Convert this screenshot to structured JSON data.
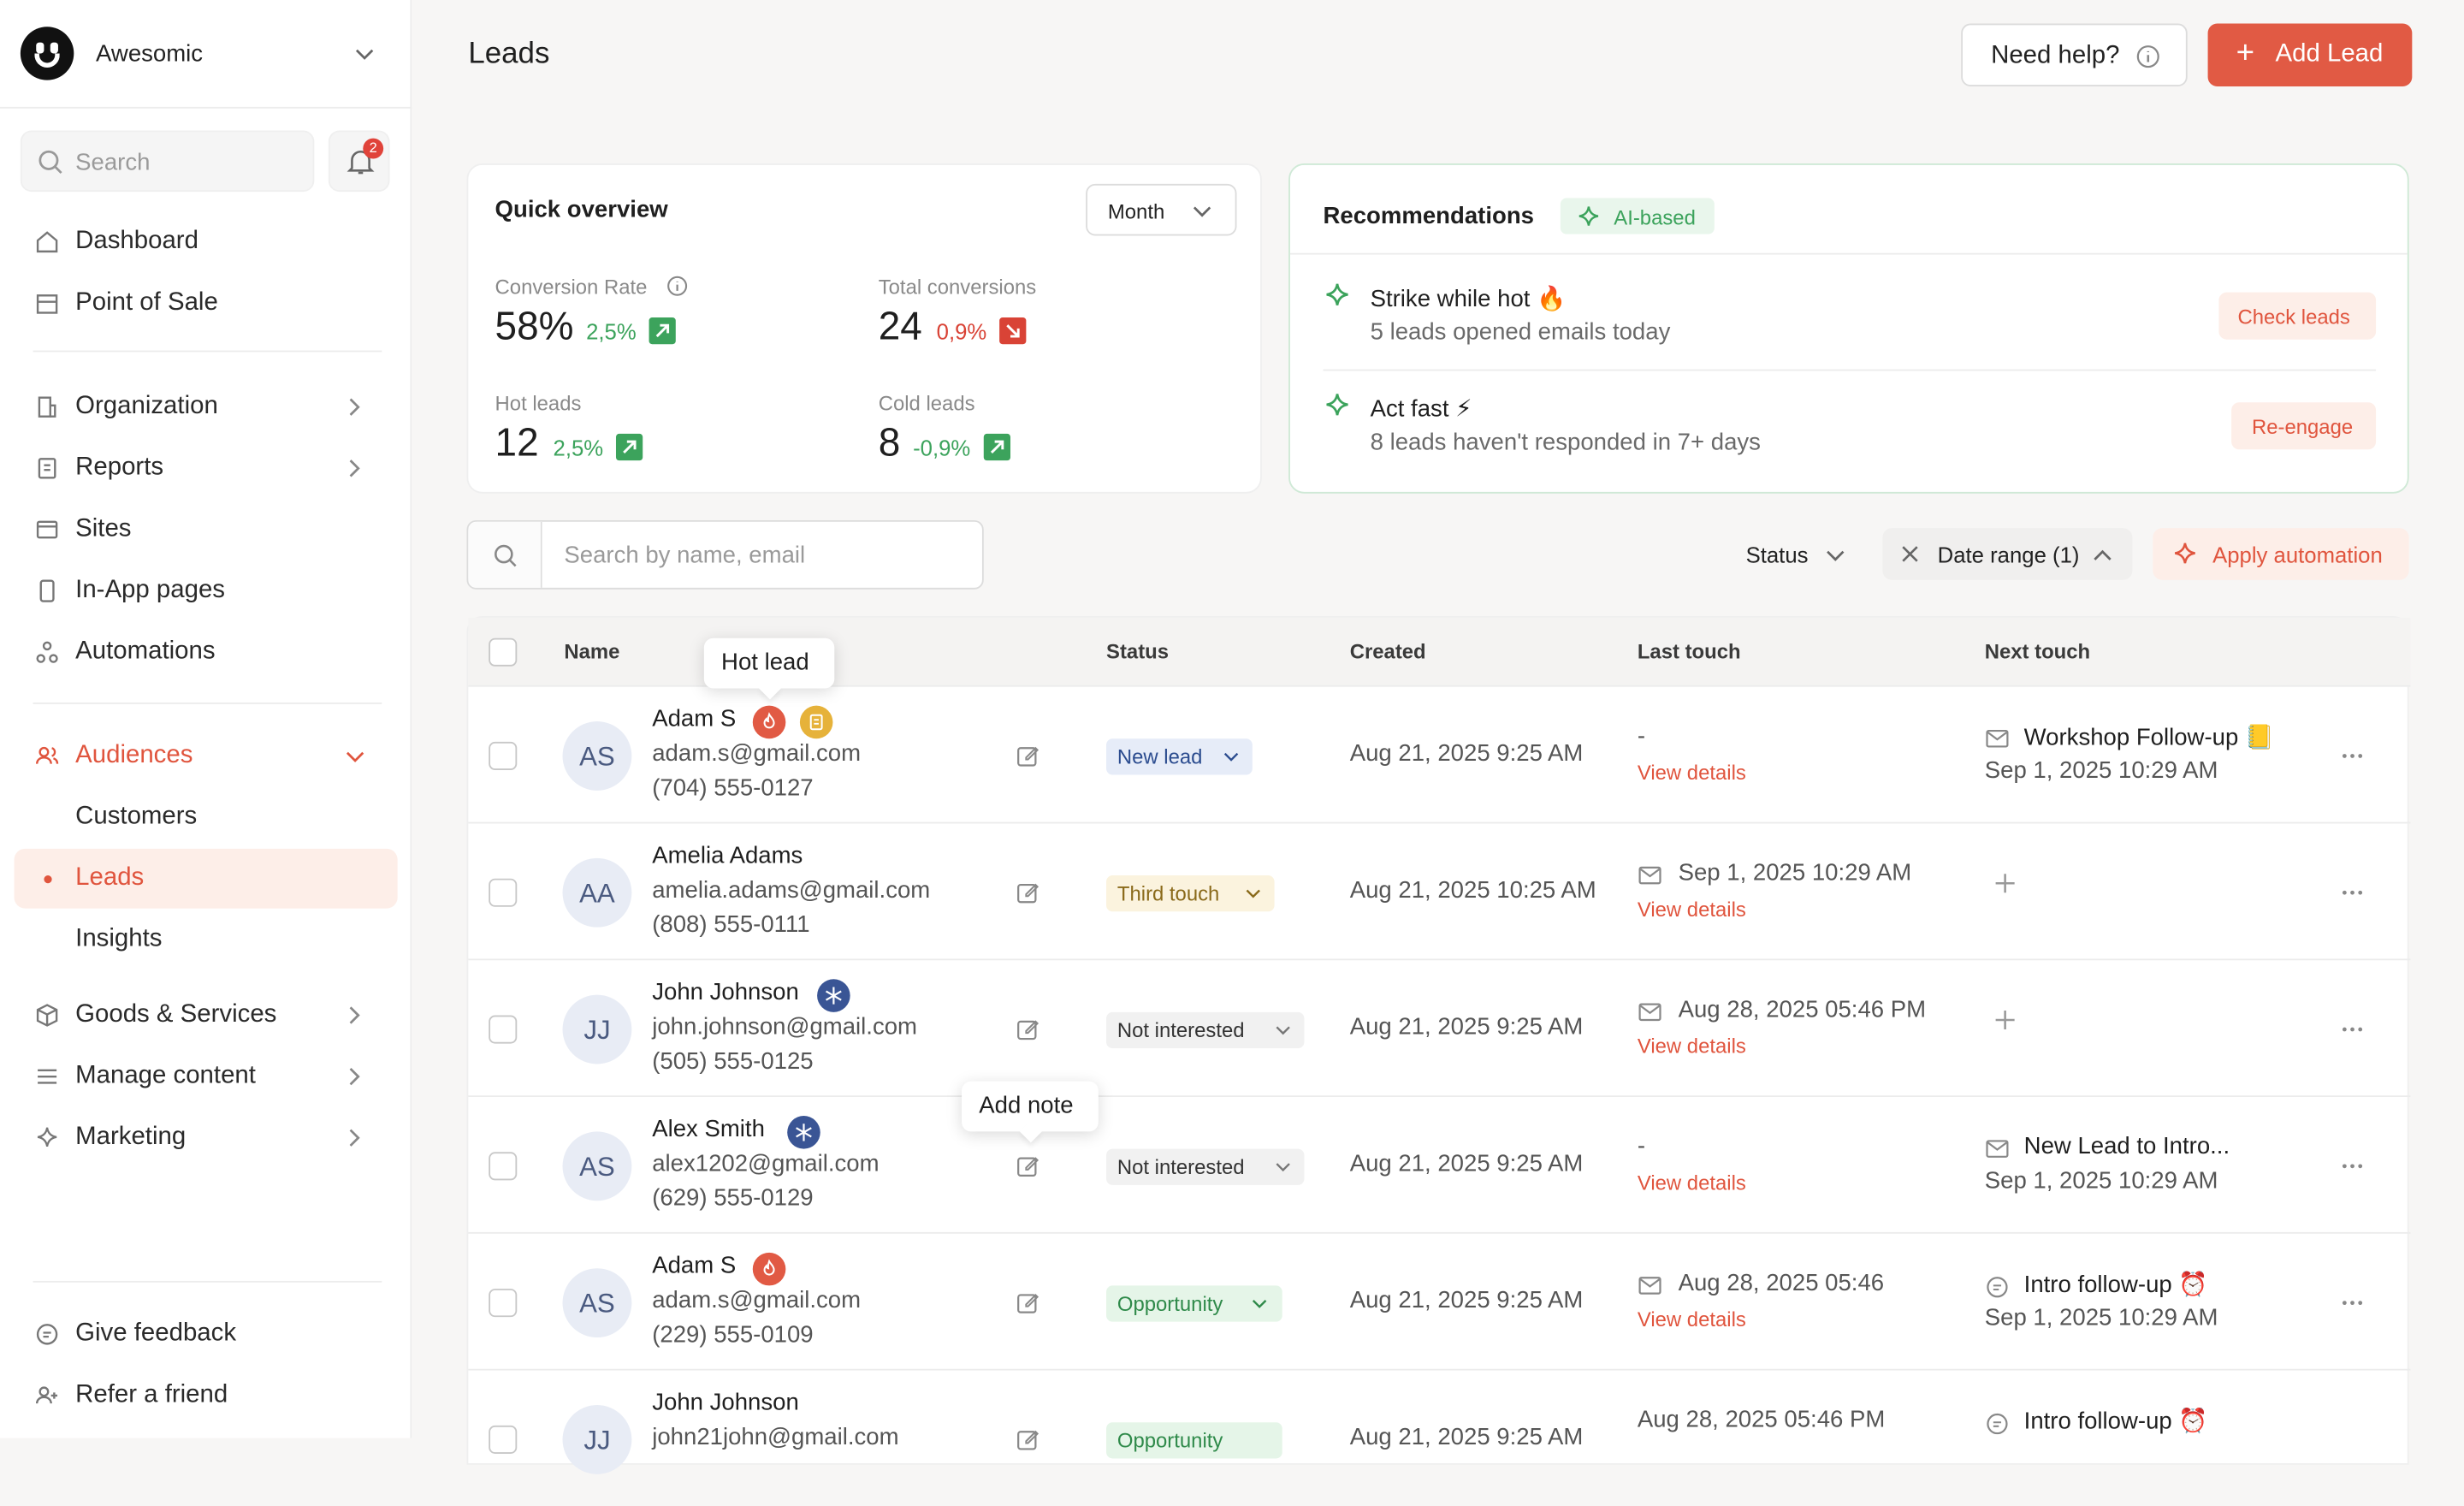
{
  "brand": {
    "name": "Awesomic"
  },
  "sidebar": {
    "search_placeholder": "Search",
    "notifications_count": "2",
    "items": {
      "dashboard": "Dashboard",
      "pos": "Point of Sale",
      "organization": "Organization",
      "reports": "Reports",
      "sites": "Sites",
      "inapp": "In-App pages",
      "automations": "Automations",
      "audiences": "Audiences",
      "customers": "Customers",
      "leads": "Leads",
      "insights": "Insights",
      "goods": "Goods & Services",
      "manage": "Manage content",
      "marketing": "Marketing",
      "feedback": "Give feedback",
      "refer": "Refer a friend"
    }
  },
  "header": {
    "title": "Leads",
    "help_label": "Need help?",
    "add_label": "Add Lead"
  },
  "overview": {
    "title": "Quick overview",
    "period": "Month",
    "stats": {
      "conversion": {
        "label": "Conversion Rate",
        "value": "58%",
        "change": "2,5%",
        "dir": "up"
      },
      "total": {
        "label": "Total conversions",
        "value": "24",
        "change": "0,9%",
        "dir": "down"
      },
      "hot": {
        "label": "Hot leads",
        "value": "12",
        "change": "2,5%",
        "dir": "up"
      },
      "cold": {
        "label": "Cold leads",
        "value": "8",
        "change": "-0,9%",
        "dir": "up"
      }
    }
  },
  "recommendations": {
    "title": "Recommendations",
    "badge": "AI-based",
    "items": [
      {
        "title": "Strike while hot 🔥",
        "subtitle": "5 leads opened emails today",
        "action": "Check leads"
      },
      {
        "title": "Act fast ⚡",
        "subtitle": "8 leads haven't responded in 7+ days",
        "action": "Re-engage"
      }
    ]
  },
  "filters": {
    "search_placeholder": "Search by name, email",
    "status_label": "Status",
    "date_label": "Date range (1)",
    "automation_label": "Apply automation"
  },
  "table": {
    "columns": {
      "name": "Name",
      "status": "Status",
      "created": "Created",
      "last": "Last touch",
      "next": "Next touch"
    },
    "view_details": "View details",
    "rows": [
      {
        "initials": "AS",
        "name": "Adam S",
        "email": "adam.s@gmail.com",
        "phone": "(704) 555-0127",
        "status": "New lead",
        "created": "Aug 21, 2025 9:25 AM",
        "last": "-",
        "next_title": "Workshop Follow-up 📒",
        "next_date": "Sep 1, 2025 10:29 AM"
      },
      {
        "initials": "AA",
        "name": "Amelia Adams",
        "email": "amelia.adams@gmail.com",
        "phone": "(808) 555-0111",
        "status": "Third touch",
        "created": "Aug 21, 2025 10:25 AM",
        "last": "Sep 1, 2025 10:29 AM"
      },
      {
        "initials": "JJ",
        "name": "John Johnson",
        "email": "john.johnson@gmail.com",
        "phone": "(505) 555-0125",
        "status": "Not interested",
        "created": "Aug 21, 2025 9:25 AM",
        "last": "Aug 28, 2025 05:46 PM"
      },
      {
        "initials": "AS",
        "name": "Alex Smith",
        "email": "alex1202@gmail.com",
        "phone": "(629) 555-0129",
        "status": "Not interested",
        "created": "Aug 21, 2025 9:25 AM",
        "last": "-",
        "next_title": "New Lead to Intro...",
        "next_date": "Sep 1, 2025 10:29 AM"
      },
      {
        "initials": "AS",
        "name": "Adam S",
        "email": "adam.s@gmail.com",
        "phone": "(229) 555-0109",
        "status": "Opportunity",
        "created": "Aug 21, 2025 9:25 AM",
        "last": "Aug 28, 2025 05:46",
        "next_title": "Intro follow-up ⏰",
        "next_date": "Sep 1, 2025 10:29 AM"
      },
      {
        "initials": "JJ",
        "name": "John Johnson",
        "email": "john21john@gmail.com",
        "phone": "",
        "status": "Opportunity",
        "created": "Aug 21, 2025 9:25 AM",
        "last": "Aug 28, 2025 05:46 PM",
        "next_title": "Intro follow-up ⏰",
        "next_date": ""
      }
    ]
  },
  "tooltips": {
    "hot": "Hot lead",
    "note": "Add note"
  }
}
